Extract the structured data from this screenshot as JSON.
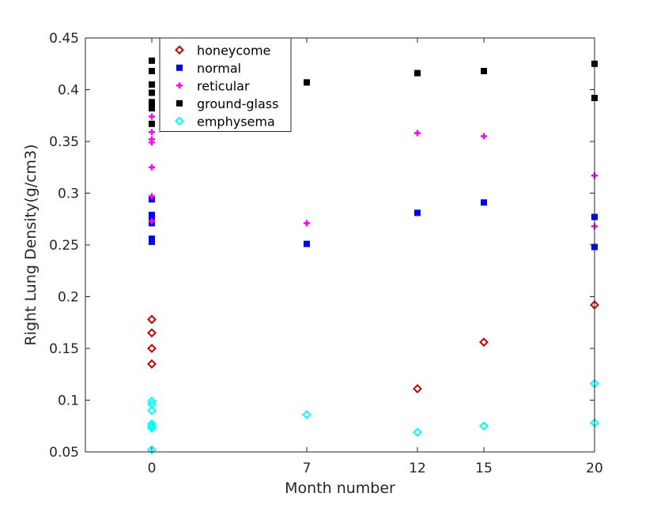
{
  "chart_data": {
    "type": "scatter",
    "xlabel": "Month number",
    "ylabel": "Right Lung Density(g/cm3)",
    "xlim": [
      -3,
      20
    ],
    "ylim": [
      0.05,
      0.45
    ],
    "x_ticks": [
      0,
      7,
      12,
      15,
      20
    ],
    "x_tick_labels": [
      "0",
      "7",
      "12",
      "15",
      "20"
    ],
    "y_ticks": [
      0.05,
      0.1,
      0.15,
      0.2,
      0.25,
      0.3,
      0.35,
      0.4,
      0.45
    ],
    "y_tick_labels": [
      "0.05",
      "0.1",
      "0.15",
      "0.2",
      "0.25",
      "0.3",
      "0.35",
      "0.4",
      "0.45"
    ],
    "grid": false,
    "legend_position": "top-left",
    "series": [
      {
        "name": "honeycome",
        "color": "#cc0000",
        "marker": "diamond-open",
        "points": [
          [
            0,
            0.178
          ],
          [
            0,
            0.165
          ],
          [
            0,
            0.15
          ],
          [
            0,
            0.135
          ],
          [
            12,
            0.111
          ],
          [
            15,
            0.156
          ],
          [
            20,
            0.192
          ]
        ]
      },
      {
        "name": "normal",
        "color": "#0000ff",
        "marker": "square-filled",
        "points": [
          [
            0,
            0.294
          ],
          [
            0,
            0.279
          ],
          [
            0,
            0.276
          ],
          [
            0,
            0.271
          ],
          [
            0,
            0.256
          ],
          [
            0,
            0.253
          ],
          [
            7,
            0.251
          ],
          [
            12,
            0.281
          ],
          [
            15,
            0.291
          ],
          [
            20,
            0.277
          ],
          [
            20,
            0.248
          ]
        ]
      },
      {
        "name": "reticular",
        "color": "#ff00ff",
        "marker": "plus",
        "points": [
          [
            0,
            0.374
          ],
          [
            0,
            0.359
          ],
          [
            0,
            0.352
          ],
          [
            0,
            0.349
          ],
          [
            0,
            0.325
          ],
          [
            0,
            0.297
          ],
          [
            0,
            0.273
          ],
          [
            7,
            0.271
          ],
          [
            12,
            0.358
          ],
          [
            15,
            0.355
          ],
          [
            20,
            0.317
          ],
          [
            20,
            0.268
          ]
        ]
      },
      {
        "name": "ground-glass",
        "color": "#000000",
        "marker": "square-filled",
        "points": [
          [
            0,
            0.428
          ],
          [
            0,
            0.418
          ],
          [
            0,
            0.405
          ],
          [
            0,
            0.397
          ],
          [
            0,
            0.388
          ],
          [
            0,
            0.385
          ],
          [
            0,
            0.382
          ],
          [
            0,
            0.367
          ],
          [
            7,
            0.407
          ],
          [
            12,
            0.416
          ],
          [
            15,
            0.418
          ],
          [
            20,
            0.425
          ],
          [
            20,
            0.392
          ]
        ]
      },
      {
        "name": "emphysema",
        "color": "#00ffff",
        "marker": "diamond-open",
        "points": [
          [
            0,
            0.099
          ],
          [
            0,
            0.096
          ],
          [
            0,
            0.09
          ],
          [
            0,
            0.077
          ],
          [
            0,
            0.075
          ],
          [
            0,
            0.073
          ],
          [
            0,
            0.052
          ],
          [
            7,
            0.086
          ],
          [
            12,
            0.069
          ],
          [
            15,
            0.075
          ],
          [
            20,
            0.116
          ],
          [
            20,
            0.078
          ]
        ]
      }
    ]
  }
}
